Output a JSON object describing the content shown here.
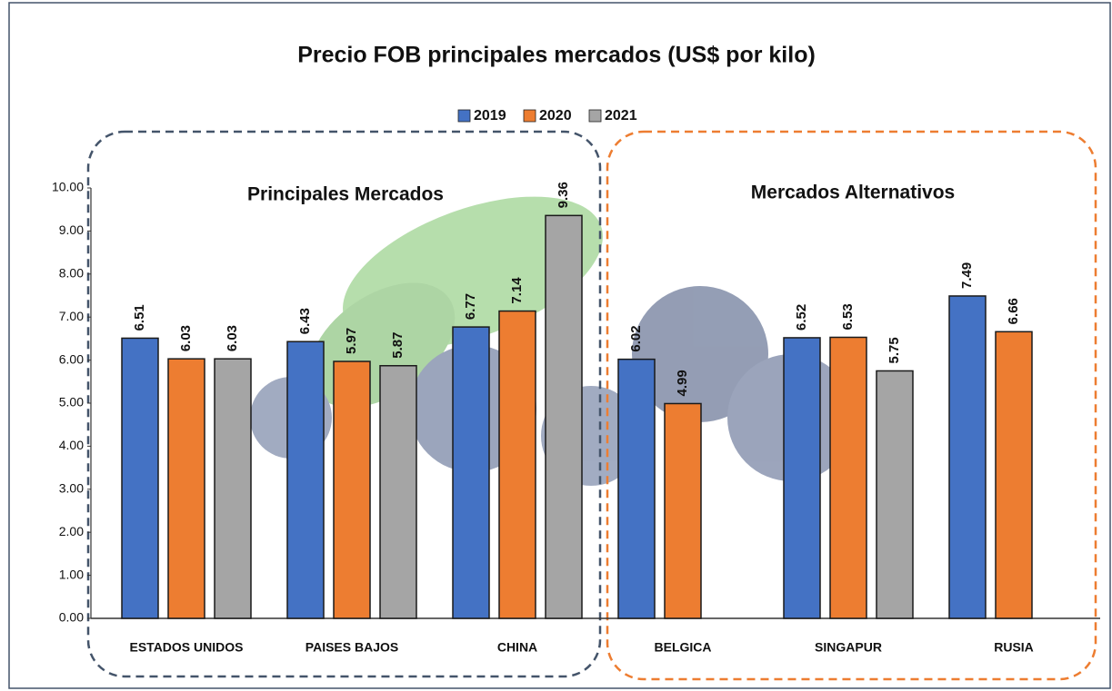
{
  "chart_data": {
    "type": "bar",
    "title": "Precio FOB principales mercados (US$ por kilo)",
    "categories": [
      "ESTADOS UNIDOS",
      "PAISES BAJOS",
      "CHINA",
      "BELGICA",
      "SINGAPUR",
      "RUSIA"
    ],
    "series": [
      {
        "name": "2019",
        "color": "#4472c4",
        "values": [
          6.51,
          6.43,
          6.77,
          6.02,
          6.52,
          7.49
        ]
      },
      {
        "name": "2020",
        "color": "#ed7d31",
        "values": [
          6.03,
          5.97,
          7.14,
          4.99,
          6.53,
          6.66
        ]
      },
      {
        "name": "2021",
        "color": "#a5a5a5",
        "values": [
          6.03,
          5.87,
          9.36,
          null,
          5.75,
          null
        ]
      }
    ],
    "ylim": [
      0,
      10
    ],
    "yticks": [
      {
        "value": 0,
        "label": "0.00"
      },
      {
        "value": 1,
        "label": "1.00"
      },
      {
        "value": 2,
        "label": "2.00"
      },
      {
        "value": 3,
        "label": "3.00"
      },
      {
        "value": 4,
        "label": "4.00"
      },
      {
        "value": 5,
        "label": "5.00"
      },
      {
        "value": 6,
        "label": "6.00"
      },
      {
        "value": 7,
        "label": "7.00"
      },
      {
        "value": 8,
        "label": "8.00"
      },
      {
        "value": 9,
        "label": "9.00"
      },
      {
        "value": 10,
        "label": "10.00"
      }
    ],
    "legend": "top",
    "annotations": [
      "Principales Mercados",
      "Mercados Alternativos"
    ]
  }
}
